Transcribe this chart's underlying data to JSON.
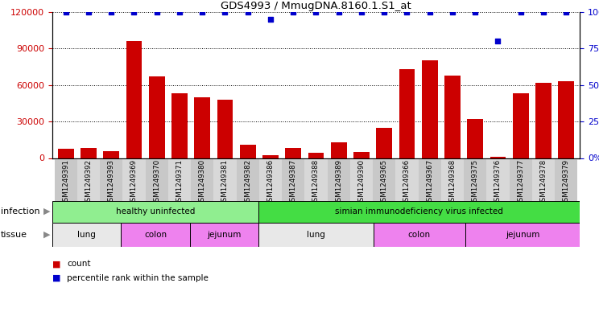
{
  "title": "GDS4993 / MmugDNA.8160.1.S1_at",
  "samples": [
    "GSM1249391",
    "GSM1249392",
    "GSM1249393",
    "GSM1249369",
    "GSM1249370",
    "GSM1249371",
    "GSM1249380",
    "GSM1249381",
    "GSM1249382",
    "GSM1249386",
    "GSM1249387",
    "GSM1249388",
    "GSM1249389",
    "GSM1249390",
    "GSM1249365",
    "GSM1249366",
    "GSM1249367",
    "GSM1249368",
    "GSM1249375",
    "GSM1249376",
    "GSM1249377",
    "GSM1249378",
    "GSM1249379"
  ],
  "counts": [
    7500,
    8000,
    5500,
    96000,
    67000,
    53000,
    50000,
    48000,
    11000,
    2500,
    8000,
    4500,
    13000,
    5000,
    25000,
    73000,
    80000,
    68000,
    32000,
    1000,
    53000,
    62000,
    63000
  ],
  "percentiles": [
    100,
    100,
    100,
    100,
    100,
    100,
    100,
    100,
    100,
    95,
    100,
    100,
    100,
    100,
    100,
    100,
    100,
    100,
    100,
    80,
    100,
    100,
    100
  ],
  "bar_color": "#CC0000",
  "scatter_color": "#0000CC",
  "ylim_left": [
    0,
    120000
  ],
  "ylim_right": [
    0,
    100
  ],
  "yticks_left": [
    0,
    30000,
    60000,
    90000,
    120000
  ],
  "yticks_right": [
    0,
    25,
    50,
    75,
    100
  ],
  "infection_groups": [
    {
      "label": "healthy uninfected",
      "start": 0,
      "end": 9,
      "color": "#90EE90"
    },
    {
      "label": "simian immunodeficiency virus infected",
      "start": 9,
      "end": 23,
      "color": "#44DD44"
    }
  ],
  "tissue_groups": [
    {
      "label": "lung",
      "start": 0,
      "end": 3,
      "color": "#E8E8E8"
    },
    {
      "label": "colon",
      "start": 3,
      "end": 6,
      "color": "#EE82EE"
    },
    {
      "label": "jejunum",
      "start": 6,
      "end": 9,
      "color": "#EE82EE"
    },
    {
      "label": "lung",
      "start": 9,
      "end": 14,
      "color": "#E8E8E8"
    },
    {
      "label": "colon",
      "start": 14,
      "end": 18,
      "color": "#EE82EE"
    },
    {
      "label": "jejunum",
      "start": 18,
      "end": 23,
      "color": "#EE82EE"
    }
  ],
  "legend_count_label": "count",
  "legend_pct_label": "percentile rank within the sample",
  "col_bg_even": "#C8C8C8",
  "col_bg_odd": "#D8D8D8"
}
